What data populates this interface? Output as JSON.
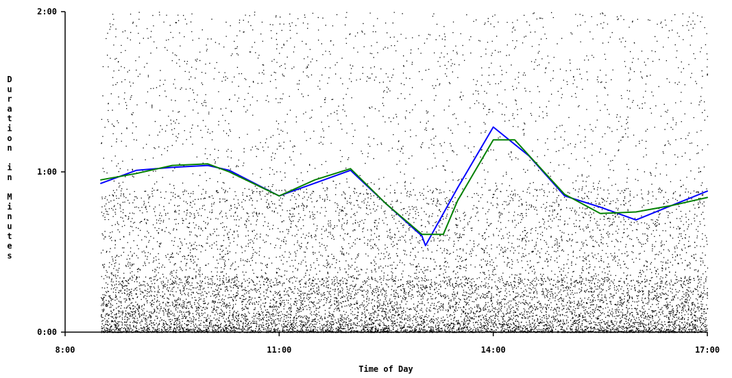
{
  "chart_data": {
    "type": "scatter",
    "title": "",
    "xlabel": "Time of Day",
    "ylabel": "Duration in Minutes",
    "x_unit": "hour",
    "y_unit": "minutes",
    "xlim": [
      8,
      17
    ],
    "ylim": [
      0,
      2
    ],
    "x_ticks": [
      8,
      11,
      14,
      17
    ],
    "x_tick_labels": [
      "8:00",
      "11:00",
      "14:00",
      "17:00"
    ],
    "y_ticks": [
      0,
      1,
      2
    ],
    "y_tick_labels": [
      "0:00",
      "1:00",
      "2:00"
    ],
    "grid": false,
    "legend": "none",
    "scatter_range_x": [
      8.5,
      17
    ],
    "series": [
      {
        "type": "line",
        "color": "#0000ff",
        "x": [
          8.5,
          9.0,
          9.5,
          10.0,
          10.3,
          11.0,
          11.5,
          12.0,
          12.5,
          13.0,
          13.05,
          13.5,
          14.0,
          14.5,
          15.0,
          15.5,
          16.0,
          16.5,
          17.0
        ],
        "y": [
          0.928,
          1.01,
          1.028,
          1.04,
          1.01,
          0.85,
          0.93,
          1.01,
          0.8,
          0.6,
          0.54,
          0.9,
          1.28,
          1.1,
          0.85,
          0.78,
          0.7,
          0.79,
          0.88
        ]
      },
      {
        "type": "line",
        "color": "#008000",
        "x": [
          8.5,
          9.0,
          9.5,
          10.0,
          10.3,
          11.0,
          11.5,
          12.0,
          12.5,
          13.0,
          13.3,
          13.5,
          14.0,
          14.3,
          15.0,
          15.5,
          16.0,
          16.5,
          17.0
        ],
        "y": [
          0.95,
          0.99,
          1.04,
          1.05,
          1.0,
          0.85,
          0.95,
          1.02,
          0.8,
          0.61,
          0.61,
          0.82,
          1.2,
          1.2,
          0.86,
          0.74,
          0.75,
          0.79,
          0.84
        ]
      }
    ]
  }
}
